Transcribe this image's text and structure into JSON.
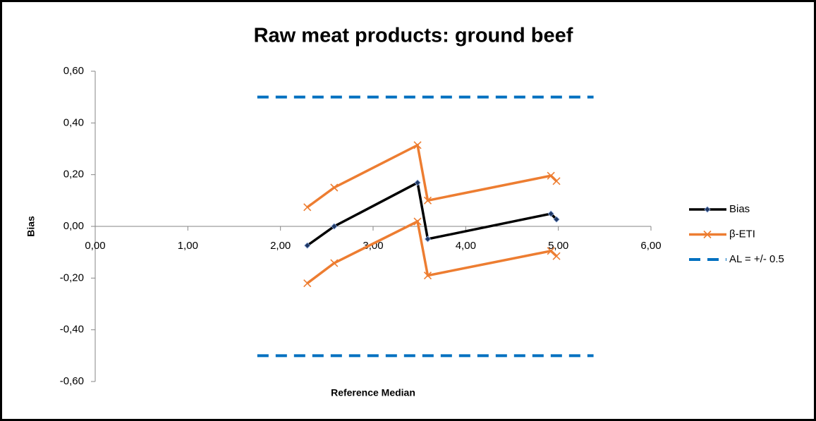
{
  "chart_data": {
    "type": "line",
    "title": "Raw meat products: ground beef",
    "x_label": "Reference Median",
    "y_label": "Bias",
    "xlim": [
      0,
      6
    ],
    "ylim": [
      -0.6,
      0.6
    ],
    "xticks": [
      {
        "value": 0,
        "label": "0,00"
      },
      {
        "value": 1,
        "label": "1,00"
      },
      {
        "value": 2,
        "label": "2,00"
      },
      {
        "value": 3,
        "label": "3,00"
      },
      {
        "value": 4,
        "label": "4,00"
      },
      {
        "value": 5,
        "label": "5,00"
      },
      {
        "value": 6,
        "label": "6,00"
      }
    ],
    "yticks": [
      {
        "value": -0.6,
        "label": "-0,60"
      },
      {
        "value": -0.4,
        "label": "-0,40"
      },
      {
        "value": -0.2,
        "label": "-0,20"
      },
      {
        "value": 0,
        "label": "0,00"
      },
      {
        "value": 0.2,
        "label": "0,20"
      },
      {
        "value": 0.4,
        "label": "0,40"
      },
      {
        "value": 0.6,
        "label": "0,60"
      }
    ],
    "grid": false,
    "legend": "right",
    "series": [
      {
        "name": "Bias",
        "color": "#000000",
        "marker": "diamond",
        "x": [
          2.29,
          2.58,
          3.48,
          3.59,
          4.92,
          4.98
        ],
        "values": [
          -0.074,
          0.0,
          0.169,
          -0.049,
          0.049,
          0.027
        ]
      },
      {
        "name": "β-ETI",
        "color": "#ed7d31",
        "marker": "x",
        "x": [
          2.29,
          2.58,
          3.48,
          3.59,
          4.92,
          4.98
        ],
        "upper": [
          0.074,
          0.15,
          0.314,
          0.1,
          0.196,
          0.175
        ],
        "lower": [
          -0.22,
          -0.142,
          0.019,
          -0.19,
          -0.095,
          -0.115
        ]
      },
      {
        "name": "AL = +/- 0.5",
        "color": "#0070c0",
        "dashed": true,
        "x": [
          1.75,
          5.38
        ],
        "upper": [
          0.5,
          0.5
        ],
        "lower": [
          -0.5,
          -0.5
        ]
      }
    ]
  }
}
